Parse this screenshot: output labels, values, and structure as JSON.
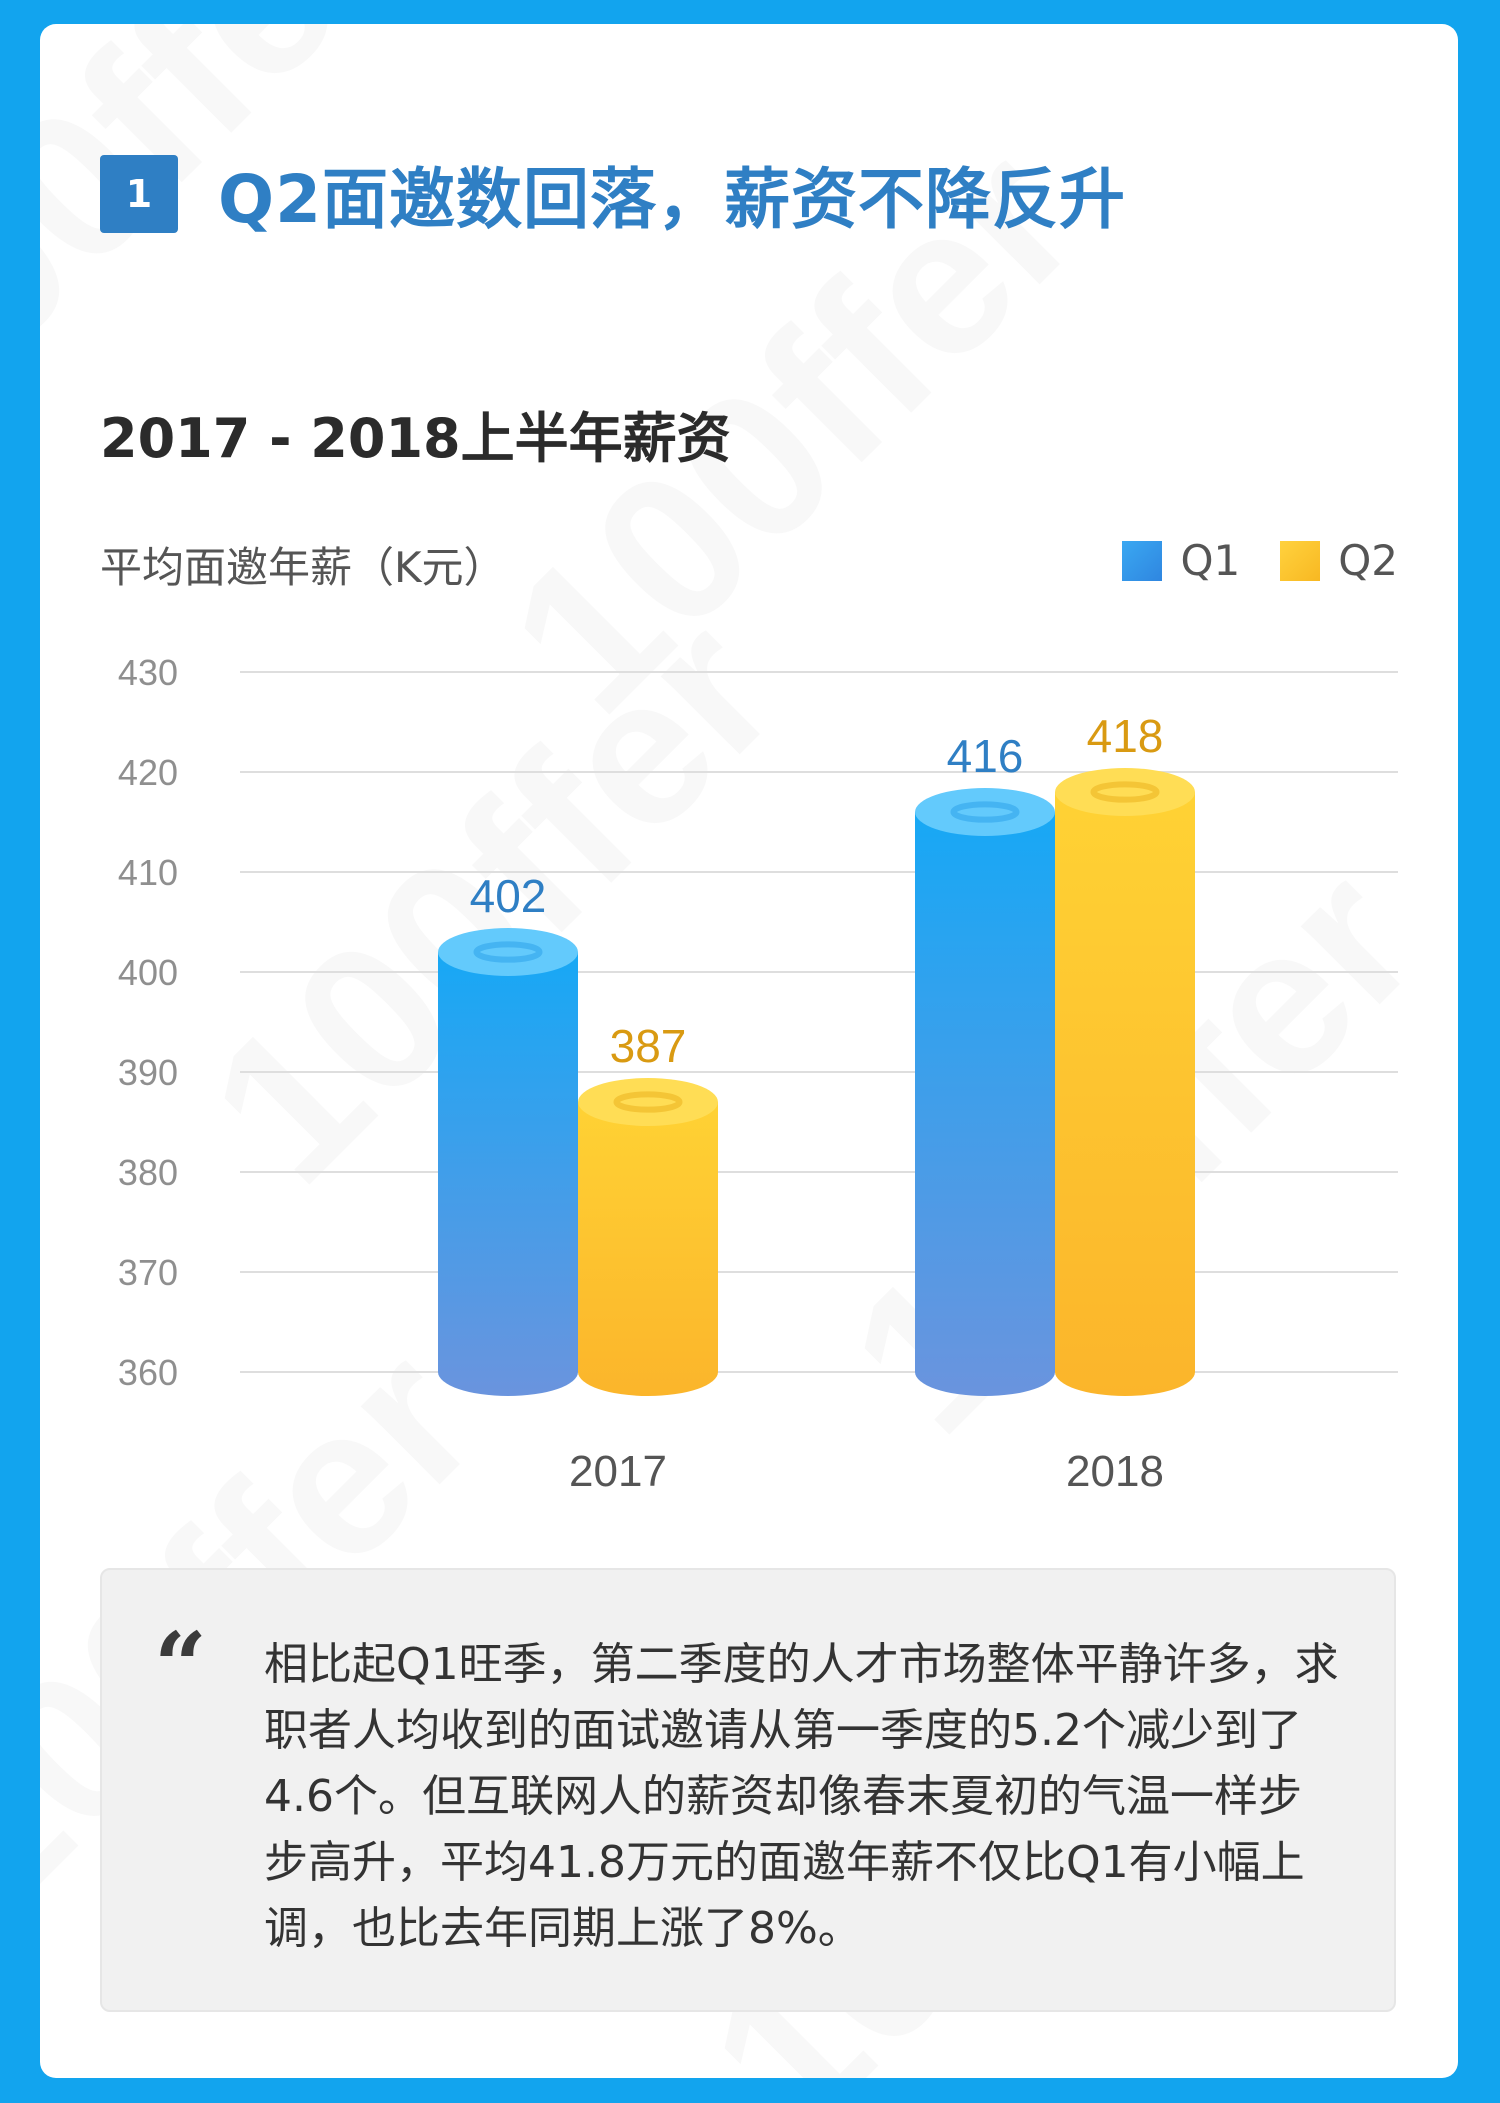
{
  "section": {
    "number": "1",
    "title": "Q2面邀数回落，薪资不降反升"
  },
  "chart_data": {
    "type": "bar",
    "title": "2017 - 2018上半年薪资",
    "ylabel": "平均面邀年薪（K元）",
    "categories": [
      "2017",
      "2018"
    ],
    "series": [
      {
        "name": "Q1",
        "values": [
          402,
          416
        ],
        "color": "#2f8ae0"
      },
      {
        "name": "Q2",
        "values": [
          387,
          418
        ],
        "color": "#fbc02d"
      }
    ],
    "ylim": [
      360,
      430
    ],
    "yticks": [
      360,
      370,
      380,
      390,
      400,
      410,
      420,
      430
    ],
    "legend_position": "top-right",
    "grid": true,
    "label_colors": {
      "Q1": "#2f7fc4",
      "Q2": "#d99a12"
    }
  },
  "quote": {
    "mark": "“",
    "text": "相比起Q1旺季，第二季度的人才市场整体平静许多，求职者人均收到的面试邀请从第一季度的5.2个减少到了4.6个。但互联网人的薪资却像春末夏初的气温一样步步高升，平均41.8万元的面邀年薪不仅比Q1有小幅上调，也比去年同期上涨了8%。"
  },
  "watermark": {
    "text": "100ffer"
  }
}
